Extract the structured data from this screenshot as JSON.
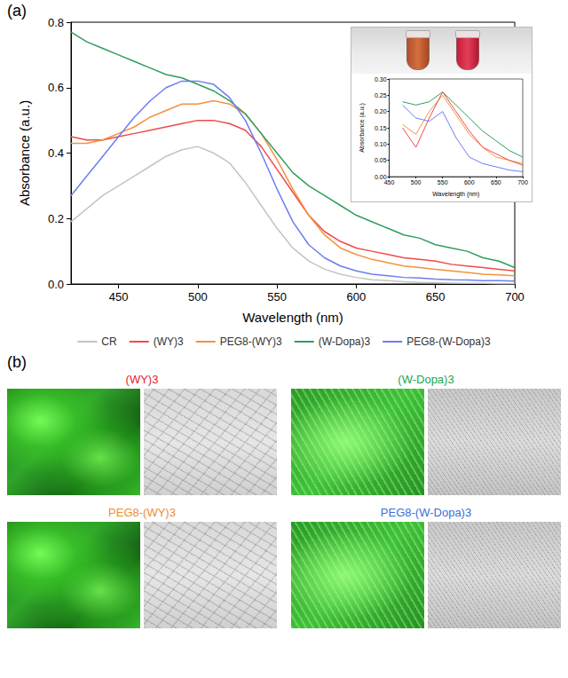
{
  "panel_labels": [
    "(a)",
    "(b)"
  ],
  "chart_data": [
    {
      "type": "line",
      "x_label": "Wavelength (nm)",
      "y_label": "Absorbance (a.u.)",
      "x": [
        420,
        430,
        440,
        450,
        460,
        470,
        480,
        490,
        500,
        510,
        520,
        530,
        540,
        550,
        560,
        570,
        580,
        590,
        600,
        610,
        620,
        630,
        640,
        650,
        660,
        670,
        680,
        690,
        700
      ],
      "xlim": [
        420,
        700
      ],
      "xticks": [
        450,
        500,
        550,
        600,
        650,
        700
      ],
      "ylim": [
        0,
        0.8
      ],
      "yticks": [
        {
          "value": 0,
          "label": "0.0"
        },
        0.2,
        0.4,
        0.6,
        0.8
      ],
      "grid": false,
      "legend": "bottom",
      "series": [
        {
          "name": "CR",
          "color": "#c4c4c4",
          "values": [
            0.19,
            0.23,
            0.27,
            0.3,
            0.33,
            0.36,
            0.39,
            0.41,
            0.42,
            0.4,
            0.37,
            0.31,
            0.24,
            0.17,
            0.11,
            0.07,
            0.045,
            0.03,
            0.02,
            0.013,
            0.01,
            0.007,
            0.005,
            0.004,
            0.003,
            0.002,
            0.002,
            0.001,
            0.001
          ]
        },
        {
          "name": "(WY)3",
          "color": "#f04a4a",
          "values": [
            0.45,
            0.44,
            0.44,
            0.45,
            0.46,
            0.47,
            0.48,
            0.49,
            0.5,
            0.5,
            0.49,
            0.47,
            0.42,
            0.35,
            0.28,
            0.21,
            0.16,
            0.13,
            0.11,
            0.1,
            0.09,
            0.08,
            0.075,
            0.07,
            0.06,
            0.055,
            0.05,
            0.045,
            0.04
          ]
        },
        {
          "name": "PEG8-(WY)3",
          "color": "#f5923e",
          "values": [
            0.43,
            0.43,
            0.44,
            0.46,
            0.48,
            0.51,
            0.53,
            0.55,
            0.55,
            0.56,
            0.55,
            0.52,
            0.46,
            0.38,
            0.29,
            0.21,
            0.15,
            0.11,
            0.09,
            0.075,
            0.065,
            0.055,
            0.05,
            0.045,
            0.04,
            0.035,
            0.03,
            0.028,
            0.025
          ]
        },
        {
          "name": "(W-Dopa)3",
          "color": "#2f9e5e",
          "values": [
            0.77,
            0.74,
            0.72,
            0.7,
            0.68,
            0.66,
            0.64,
            0.63,
            0.61,
            0.59,
            0.56,
            0.52,
            0.46,
            0.4,
            0.34,
            0.3,
            0.27,
            0.24,
            0.21,
            0.19,
            0.17,
            0.15,
            0.14,
            0.12,
            0.11,
            0.1,
            0.08,
            0.07,
            0.05
          ]
        },
        {
          "name": "PEG8-(W-Dopa)3",
          "color": "#6c7ef0",
          "values": [
            0.27,
            0.33,
            0.39,
            0.45,
            0.51,
            0.56,
            0.6,
            0.62,
            0.62,
            0.61,
            0.57,
            0.5,
            0.4,
            0.29,
            0.19,
            0.12,
            0.08,
            0.055,
            0.04,
            0.03,
            0.025,
            0.02,
            0.018,
            0.015,
            0.013,
            0.012,
            0.01,
            0.01,
            0.009
          ]
        }
      ]
    },
    {
      "type": "line",
      "x_label": "Wavelength (nm)",
      "y_label": "Absorbance (a.u.)",
      "x": [
        475,
        500,
        525,
        550,
        575,
        600,
        625,
        650,
        675,
        700
      ],
      "xlim": [
        450,
        700
      ],
      "xticks": [
        450,
        500,
        550,
        600,
        650,
        700
      ],
      "ylim": [
        0,
        0.3
      ],
      "yticks": [
        {
          "value": 0,
          "label": "0.00"
        },
        0.05,
        {
          "value": 0.1,
          "label": "0.10"
        },
        0.15,
        {
          "value": 0.2,
          "label": "0.20"
        },
        0.25,
        {
          "value": 0.3,
          "label": "0.30"
        }
      ],
      "grid": false,
      "series": [
        {
          "color": "#2f9e5e",
          "values": [
            0.23,
            0.22,
            0.23,
            0.26,
            0.22,
            0.18,
            0.14,
            0.11,
            0.08,
            0.06
          ]
        },
        {
          "color": "#f5923e",
          "values": [
            0.16,
            0.13,
            0.2,
            0.25,
            0.19,
            0.13,
            0.09,
            0.06,
            0.05,
            0.04
          ]
        },
        {
          "color": "#f04a4a",
          "values": [
            0.15,
            0.09,
            0.18,
            0.26,
            0.2,
            0.14,
            0.09,
            0.07,
            0.05,
            0.035
          ]
        },
        {
          "color": "#6c7ef0",
          "values": [
            0.22,
            0.18,
            0.17,
            0.2,
            0.12,
            0.06,
            0.04,
            0.03,
            0.02,
            0.015
          ]
        }
      ]
    }
  ],
  "micrographs": [
    {
      "title": "(WY)3",
      "color": "#e8202a"
    },
    {
      "title": "(W-Dopa)3",
      "color": "#22a84a"
    },
    {
      "title": "PEG8-(WY)3",
      "color": "#f08c30"
    },
    {
      "title": "PEG8-(W-Dopa)3",
      "color": "#3a6fd8"
    }
  ]
}
